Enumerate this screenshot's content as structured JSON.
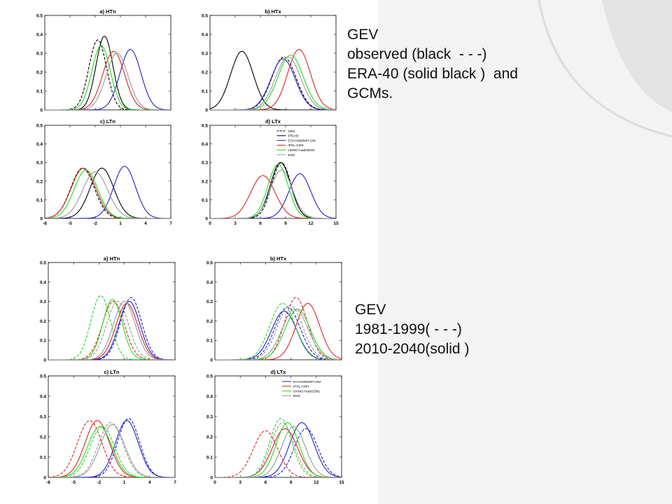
{
  "captions": {
    "top": [
      "GEV",
      "observed (black  - - -)",
      "ERA-40 (solid black )  and",
      "GCMs."
    ],
    "bottom": [
      "GEV",
      "1981-1999( - - -)",
      "2010-2040(solid )"
    ]
  },
  "colors": {
    "OBS": "#000000",
    "ERA40": "#000000",
    "ECHAM": "#1f1fcc",
    "IPSL": "#e02020",
    "UKMO": "#22dd22",
    "ENS": "#999999",
    "slide_background": "#ffffff",
    "slide_decoration": "#e6e6e6"
  },
  "chart_data": [
    {
      "title": "a) HTn",
      "type": "line",
      "xlim": [
        -8,
        7
      ],
      "ylim": [
        0,
        0.5
      ],
      "xticks": [],
      "yticks": [
        "0",
        "0.1",
        "0.2",
        "0.3",
        "0.4",
        "0.5"
      ],
      "series": [
        {
          "key": "OBS",
          "dashed": true,
          "mu": -1.7,
          "sigma": 1.05,
          "peak": 0.37
        },
        {
          "key": "ERA40",
          "dashed": false,
          "mu": -0.9,
          "sigma": 1.0,
          "peak": 0.39
        },
        {
          "key": "ECHAM",
          "dashed": false,
          "mu": 2.2,
          "sigma": 1.25,
          "peak": 0.32
        },
        {
          "key": "IPSL",
          "dashed": false,
          "mu": 0.2,
          "sigma": 1.3,
          "peak": 0.31
        },
        {
          "key": "UKMO",
          "dashed": false,
          "mu": -1.3,
          "sigma": 1.1,
          "peak": 0.34
        },
        {
          "key": "ENS",
          "dashed": false,
          "mu": 0.6,
          "sigma": 1.3,
          "peak": 0.3
        }
      ]
    },
    {
      "title": "b) HTx",
      "type": "line",
      "xlim": [
        0,
        15
      ],
      "ylim": [
        0,
        0.5
      ],
      "xticks": [],
      "yticks": [
        "0",
        "0.1",
        "0.2",
        "0.3",
        "0.4",
        "0.5"
      ],
      "series": [
        {
          "key": "OBS",
          "dashed": true,
          "mu": 8.8,
          "sigma": 1.45,
          "peak": 0.28
        },
        {
          "key": "ERA40",
          "dashed": false,
          "mu": 3.8,
          "sigma": 1.35,
          "peak": 0.31
        },
        {
          "key": "ECHAM",
          "dashed": false,
          "mu": 8.7,
          "sigma": 1.45,
          "peak": 0.27
        },
        {
          "key": "IPSL",
          "dashed": false,
          "mu": 10.6,
          "sigma": 1.35,
          "peak": 0.32
        },
        {
          "key": "UKMO",
          "dashed": false,
          "mu": 9.6,
          "sigma": 1.5,
          "peak": 0.29
        },
        {
          "key": "ENS",
          "dashed": false,
          "mu": 9.3,
          "sigma": 1.5,
          "peak": 0.28
        }
      ]
    },
    {
      "title": "c) LTn",
      "type": "line",
      "xlim": [
        -8,
        7
      ],
      "ylim": [
        0,
        0.5
      ],
      "xticks": [
        "-8",
        "-5",
        "-2",
        "1",
        "4",
        "7"
      ],
      "yticks": [
        "0",
        "0.1",
        "0.2",
        "0.3",
        "0.4",
        "0.5"
      ],
      "series": [
        {
          "key": "OBS",
          "dashed": true,
          "mu": -3.5,
          "sigma": 1.4,
          "peak": 0.27
        },
        {
          "key": "ERA40",
          "dashed": false,
          "mu": -1.2,
          "sigma": 1.4,
          "peak": 0.27
        },
        {
          "key": "ECHAM",
          "dashed": false,
          "mu": 1.5,
          "sigma": 1.3,
          "peak": 0.28
        },
        {
          "key": "IPSL",
          "dashed": false,
          "mu": -3.4,
          "sigma": 1.45,
          "peak": 0.27
        },
        {
          "key": "UKMO",
          "dashed": false,
          "mu": -3.1,
          "sigma": 1.4,
          "peak": 0.26
        },
        {
          "key": "ENS",
          "dashed": false,
          "mu": -2.0,
          "sigma": 1.5,
          "peak": 0.25
        }
      ]
    },
    {
      "title": "d) LTx",
      "type": "line",
      "xlim": [
        0,
        15
      ],
      "ylim": [
        0,
        0.5
      ],
      "xticks": [
        "0",
        "3",
        "6",
        "9",
        "12",
        "15"
      ],
      "yticks": [
        "0",
        "0.1",
        "0.2",
        "0.3",
        "0.4",
        "0.5"
      ],
      "legend": {
        "placement": "top-right",
        "items": [
          {
            "key": "OBS",
            "label": "OBS",
            "dashed": true
          },
          {
            "key": "ERA40",
            "label": "ERA40",
            "dashed": false
          },
          {
            "key": "ECHAM",
            "label": "ECHAM5/MPI-OM",
            "dashed": false
          },
          {
            "key": "IPSL",
            "label": "IPSL-CM4",
            "dashed": false
          },
          {
            "key": "UKMO",
            "label": "UKMO-HadGEM1",
            "dashed": false
          },
          {
            "key": "ENS",
            "label": "ENS",
            "dashed": false
          }
        ]
      },
      "series": [
        {
          "key": "OBS",
          "dashed": true,
          "mu": 8.5,
          "sigma": 1.15,
          "peak": 0.3
        },
        {
          "key": "ERA40",
          "dashed": false,
          "mu": 8.4,
          "sigma": 1.2,
          "peak": 0.3
        },
        {
          "key": "ECHAM",
          "dashed": false,
          "mu": 10.7,
          "sigma": 1.3,
          "peak": 0.24
        },
        {
          "key": "IPSL",
          "dashed": false,
          "mu": 6.3,
          "sigma": 1.45,
          "peak": 0.23
        },
        {
          "key": "UKMO",
          "dashed": false,
          "mu": 8.1,
          "sigma": 1.2,
          "peak": 0.29
        },
        {
          "key": "ENS",
          "dashed": false,
          "mu": 8.5,
          "sigma": 1.3,
          "peak": 0.26
        }
      ]
    },
    {
      "title": "a) HTn",
      "type": "line",
      "xlim": [
        -8,
        7
      ],
      "ylim": [
        0,
        0.5
      ],
      "xticks": [],
      "yticks": [
        "0",
        "0.1",
        "0.2",
        "0.3",
        "0.4",
        "0.5"
      ],
      "series": [
        {
          "key": "ECHAM",
          "dashed": true,
          "mu": 1.8,
          "sigma": 1.25,
          "peak": 0.32
        },
        {
          "key": "ECHAM",
          "dashed": false,
          "mu": 1.6,
          "sigma": 1.25,
          "peak": 0.3
        },
        {
          "key": "IPSL",
          "dashed": true,
          "mu": -0.3,
          "sigma": 1.3,
          "peak": 0.3
        },
        {
          "key": "IPSL",
          "dashed": false,
          "mu": 1.3,
          "sigma": 1.3,
          "peak": 0.29
        },
        {
          "key": "UKMO",
          "dashed": true,
          "mu": -1.8,
          "sigma": 1.15,
          "peak": 0.33
        },
        {
          "key": "UKMO",
          "dashed": false,
          "mu": -0.4,
          "sigma": 1.15,
          "peak": 0.31
        },
        {
          "key": "ENS",
          "dashed": true,
          "mu": 0.2,
          "sigma": 1.3,
          "peak": 0.3
        },
        {
          "key": "ENS",
          "dashed": false,
          "mu": 1.0,
          "sigma": 1.3,
          "peak": 0.3
        }
      ]
    },
    {
      "title": "b) HTx",
      "type": "line",
      "xlim": [
        0,
        15
      ],
      "ylim": [
        0,
        0.5
      ],
      "xticks": [],
      "yticks": [
        "0",
        "0.1",
        "0.2",
        "0.3",
        "0.4",
        "0.5"
      ],
      "series": [
        {
          "key": "ECHAM",
          "dashed": true,
          "mu": 8.6,
          "sigma": 1.5,
          "peak": 0.27
        },
        {
          "key": "ECHAM",
          "dashed": false,
          "mu": 8.2,
          "sigma": 1.5,
          "peak": 0.25
        },
        {
          "key": "IPSL",
          "dashed": true,
          "mu": 9.6,
          "sigma": 1.35,
          "peak": 0.32
        },
        {
          "key": "IPSL",
          "dashed": false,
          "mu": 11.0,
          "sigma": 1.4,
          "peak": 0.29
        },
        {
          "key": "UKMO",
          "dashed": true,
          "mu": 8.0,
          "sigma": 1.5,
          "peak": 0.29
        },
        {
          "key": "UKMO",
          "dashed": false,
          "mu": 9.8,
          "sigma": 1.5,
          "peak": 0.26
        },
        {
          "key": "ENS",
          "dashed": true,
          "mu": 8.9,
          "sigma": 1.5,
          "peak": 0.28
        },
        {
          "key": "ENS",
          "dashed": false,
          "mu": 9.5,
          "sigma": 1.55,
          "peak": 0.26
        }
      ]
    },
    {
      "title": "c) LTn",
      "type": "line",
      "xlim": [
        -8,
        7
      ],
      "ylim": [
        0,
        0.5
      ],
      "xticks": [
        "-8",
        "-5",
        "-2",
        "1",
        "4",
        "7"
      ],
      "yticks": [
        "0",
        "0.1",
        "0.2",
        "0.3",
        "0.4",
        "0.5"
      ],
      "series": [
        {
          "key": "ECHAM",
          "dashed": true,
          "mu": 1.5,
          "sigma": 1.3,
          "peak": 0.29
        },
        {
          "key": "ECHAM",
          "dashed": false,
          "mu": 1.3,
          "sigma": 1.35,
          "peak": 0.28
        },
        {
          "key": "IPSL",
          "dashed": true,
          "mu": -3.1,
          "sigma": 1.45,
          "peak": 0.28
        },
        {
          "key": "IPSL",
          "dashed": false,
          "mu": -2.2,
          "sigma": 1.45,
          "peak": 0.28
        },
        {
          "key": "UKMO",
          "dashed": true,
          "mu": -1.6,
          "sigma": 1.45,
          "peak": 0.25
        },
        {
          "key": "UKMO",
          "dashed": false,
          "mu": -1.9,
          "sigma": 1.45,
          "peak": 0.25
        },
        {
          "key": "ENS",
          "dashed": true,
          "mu": -0.6,
          "sigma": 1.45,
          "peak": 0.27
        },
        {
          "key": "ENS",
          "dashed": false,
          "mu": -0.4,
          "sigma": 1.45,
          "peak": 0.26
        }
      ]
    },
    {
      "title": "d) LTx",
      "type": "line",
      "xlim": [
        0,
        15
      ],
      "ylim": [
        0,
        0.5
      ],
      "xticks": [
        "0",
        "3",
        "6",
        "9",
        "12",
        "15"
      ],
      "yticks": [
        "0",
        "0.1",
        "0.2",
        "0.3",
        "0.4",
        "0.5"
      ],
      "legend": {
        "placement": "top-right",
        "items": [
          {
            "key": "ECHAM",
            "label": "ECHAM5/MPI-OM",
            "dashed": false
          },
          {
            "key": "IPSL",
            "label": "IPSL-CM4",
            "dashed": false
          },
          {
            "key": "UKMO",
            "label": "UKMO-HadGEM1",
            "dashed": false
          },
          {
            "key": "ENS",
            "label": "ENS",
            "dashed": false
          }
        ]
      },
      "series": [
        {
          "key": "ECHAM",
          "dashed": true,
          "mu": 10.8,
          "sigma": 1.4,
          "peak": 0.24
        },
        {
          "key": "ECHAM",
          "dashed": false,
          "mu": 10.3,
          "sigma": 1.45,
          "peak": 0.27
        },
        {
          "key": "IPSL",
          "dashed": true,
          "mu": 6.0,
          "sigma": 1.45,
          "peak": 0.23
        },
        {
          "key": "IPSL",
          "dashed": false,
          "mu": 8.3,
          "sigma": 1.5,
          "peak": 0.24
        },
        {
          "key": "UKMO",
          "dashed": true,
          "mu": 7.8,
          "sigma": 1.3,
          "peak": 0.29
        },
        {
          "key": "UKMO",
          "dashed": false,
          "mu": 8.6,
          "sigma": 1.35,
          "peak": 0.27
        },
        {
          "key": "ENS",
          "dashed": true,
          "mu": 8.0,
          "sigma": 1.35,
          "peak": 0.27
        },
        {
          "key": "ENS",
          "dashed": false,
          "mu": 9.3,
          "sigma": 1.4,
          "peak": 0.25
        }
      ]
    }
  ]
}
